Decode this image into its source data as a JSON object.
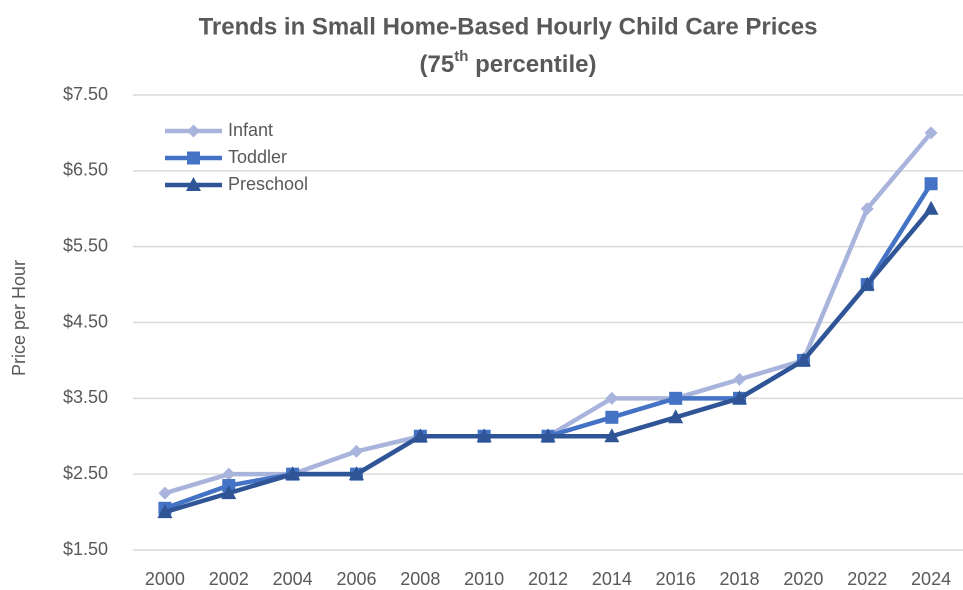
{
  "chart_data": {
    "type": "line",
    "title": "Trends in Small Home-Based Hourly Child Care Prices",
    "subtitle_parts": [
      "(75",
      "th",
      " percentile)"
    ],
    "y_label": "Price per Hour",
    "categories": [
      "2000",
      "2002",
      "2004",
      "2006",
      "2008",
      "2010",
      "2012",
      "2014",
      "2016",
      "2018",
      "2020",
      "2022",
      "2024"
    ],
    "series": [
      {
        "name": "Infant",
        "color": "#a9b4dc",
        "marker": "diamond",
        "values": [
          2.25,
          2.5,
          2.5,
          2.8,
          3.0,
          3.0,
          3.0,
          3.5,
          3.5,
          3.75,
          4.0,
          6.0,
          7.0
        ]
      },
      {
        "name": "Toddler",
        "color": "#4472c4",
        "marker": "square",
        "values": [
          2.05,
          2.35,
          2.5,
          2.5,
          3.0,
          3.0,
          3.0,
          3.25,
          3.5,
          3.5,
          4.0,
          5.0,
          6.33
        ]
      },
      {
        "name": "Preschool",
        "color": "#2f5597",
        "marker": "triangle",
        "values": [
          2.0,
          2.25,
          2.5,
          2.5,
          3.0,
          3.0,
          3.0,
          3.0,
          3.25,
          3.5,
          4.0,
          5.0,
          6.0
        ]
      }
    ],
    "ylim": [
      1.5,
      7.5
    ],
    "yticks": [
      {
        "value": 1.5,
        "label": "$1.50"
      },
      {
        "value": 2.5,
        "label": "$2.50"
      },
      {
        "value": 3.5,
        "label": "$3.50"
      },
      {
        "value": 4.5,
        "label": "$4.50"
      },
      {
        "value": 5.5,
        "label": "$5.50"
      },
      {
        "value": 6.5,
        "label": "$6.50"
      },
      {
        "value": 7.5,
        "label": "$7.50"
      }
    ],
    "grid": true,
    "legend": "upper left"
  }
}
